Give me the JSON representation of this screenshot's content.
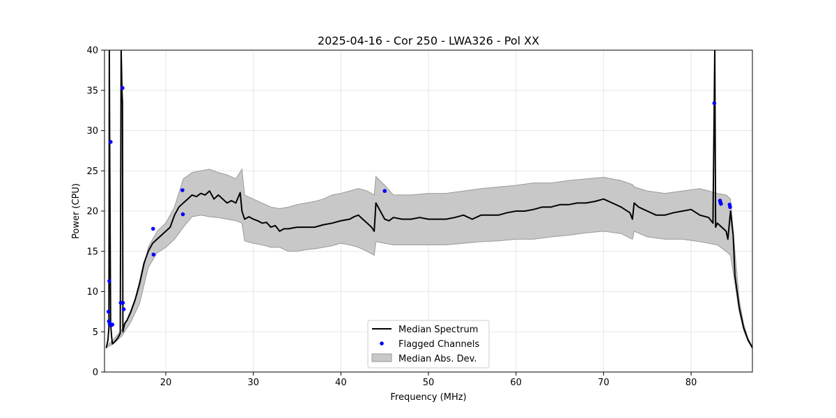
{
  "chart_data": {
    "type": "line",
    "title": "2025-04-16 - Cor 250 - LWA326 - Pol XX",
    "xlabel": "Frequency (MHz)",
    "ylabel": "Power (CPU)",
    "xlim": [
      13,
      87
    ],
    "ylim": [
      0,
      40
    ],
    "xticks": [
      20,
      30,
      40,
      50,
      60,
      70,
      80
    ],
    "yticks": [
      0,
      5,
      10,
      15,
      20,
      25,
      30,
      35,
      40
    ],
    "grid": true,
    "legend_position": "bottom-center",
    "colors": {
      "median": "#000000",
      "flagged": "#0000ff",
      "band_fill": "#c8c8c8",
      "band_edge": "#999999"
    },
    "series": [
      {
        "name": "Median Spectrum",
        "kind": "line",
        "x": [
          13.2,
          13.4,
          13.5,
          13.55,
          13.6,
          13.7,
          13.8,
          13.9,
          14.0,
          14.2,
          14.5,
          14.8,
          14.9,
          15.0,
          15.05,
          15.1,
          15.2,
          15.3,
          15.6,
          16.0,
          16.5,
          17.0,
          17.5,
          18.0,
          18.5,
          19.0,
          19.5,
          20.0,
          20.5,
          21.0,
          21.5,
          22.0,
          22.5,
          23.0,
          23.5,
          24.0,
          24.5,
          25.0,
          25.5,
          26.0,
          26.5,
          27.0,
          27.5,
          28.0,
          28.5,
          28.7,
          29.0,
          29.5,
          30.0,
          30.5,
          31.0,
          31.5,
          32.0,
          32.5,
          33.0,
          33.5,
          34.0,
          35.0,
          36.0,
          37.0,
          38.0,
          39.0,
          40.0,
          41.0,
          41.5,
          42.0,
          42.5,
          43.0,
          43.5,
          43.8,
          44.0,
          44.5,
          45.0,
          45.5,
          46.0,
          47.0,
          48.0,
          49.0,
          50.0,
          51.0,
          52.0,
          53.0,
          54.0,
          55.0,
          56.0,
          57.0,
          58.0,
          59.0,
          60.0,
          61.0,
          62.0,
          63.0,
          64.0,
          65.0,
          66.0,
          67.0,
          68.0,
          69.0,
          70.0,
          71.0,
          72.0,
          73.0,
          73.3,
          73.5,
          74.0,
          75.0,
          76.0,
          77.0,
          78.0,
          79.0,
          80.0,
          81.0,
          82.0,
          82.5,
          82.7,
          82.8,
          83.0,
          83.5,
          84.0,
          84.2,
          84.5,
          84.8,
          85.0,
          85.5,
          86.0,
          86.5,
          87.0
        ],
        "values": [
          3.0,
          4.0,
          5.5,
          40.0,
          27.3,
          6.0,
          4.5,
          3.5,
          3.6,
          3.8,
          4.2,
          4.8,
          40.0,
          35.0,
          33.5,
          5.0,
          5.5,
          6.0,
          6.5,
          7.5,
          9.0,
          11.0,
          13.5,
          15.0,
          16.0,
          16.5,
          17.0,
          17.5,
          18.0,
          19.5,
          20.5,
          21.0,
          21.5,
          22.0,
          21.8,
          22.2,
          22.0,
          22.5,
          21.5,
          22.0,
          21.5,
          21.0,
          21.3,
          21.0,
          22.3,
          20.0,
          19.0,
          19.3,
          19.0,
          18.8,
          18.5,
          18.6,
          18.0,
          18.2,
          17.5,
          17.8,
          17.8,
          18.0,
          18.0,
          18.0,
          18.3,
          18.5,
          18.8,
          19.0,
          19.3,
          19.5,
          19.0,
          18.5,
          18.0,
          17.5,
          21.0,
          20.0,
          19.0,
          18.8,
          19.2,
          19.0,
          19.0,
          19.2,
          19.0,
          19.0,
          19.0,
          19.2,
          19.5,
          19.0,
          19.5,
          19.5,
          19.5,
          19.8,
          20.0,
          20.0,
          20.2,
          20.5,
          20.5,
          20.8,
          20.8,
          21.0,
          21.0,
          21.2,
          21.5,
          21.0,
          20.5,
          19.8,
          19.0,
          21.0,
          20.5,
          20.0,
          19.5,
          19.5,
          19.8,
          20.0,
          20.2,
          19.5,
          19.2,
          18.5,
          40.0,
          18.0,
          18.5,
          18.0,
          17.5,
          16.5,
          20.0,
          17.0,
          12.0,
          8.0,
          5.5,
          4.0,
          3.0
        ]
      },
      {
        "name": "Flagged Channels",
        "kind": "scatter",
        "x": [
          13.45,
          13.5,
          13.55,
          13.6,
          13.7,
          13.75,
          13.9,
          14.85,
          15.0,
          15.05,
          15.1,
          15.2,
          18.55,
          18.6,
          21.9,
          21.95,
          45.0,
          82.65,
          83.3,
          83.35,
          83.4,
          84.4,
          84.45
        ],
        "values": [
          7.5,
          6.3,
          11.3,
          6.0,
          28.6,
          5.8,
          5.9,
          8.6,
          8.6,
          35.3,
          8.6,
          7.8,
          17.8,
          14.6,
          22.6,
          19.6,
          22.5,
          33.4,
          21.3,
          21.1,
          20.9,
          20.8,
          20.5
        ]
      },
      {
        "name": "Median Abs. Dev.",
        "kind": "band",
        "x": [
          13.2,
          14.0,
          15.0,
          16.0,
          17.0,
          18.0,
          19.0,
          20.0,
          21.0,
          22.0,
          23.0,
          24.0,
          25.0,
          26.0,
          27.0,
          28.0,
          28.7,
          29.0,
          30.0,
          31.0,
          32.0,
          33.0,
          34.0,
          35.0,
          36.0,
          37.0,
          38.0,
          39.0,
          40.0,
          41.0,
          42.0,
          43.0,
          43.8,
          44.0,
          45.0,
          46.0,
          47.0,
          48.0,
          50.0,
          52.0,
          54.0,
          56.0,
          58.0,
          60.0,
          62.0,
          64.0,
          66.0,
          68.0,
          70.0,
          72.0,
          73.3,
          73.5,
          75.0,
          77.0,
          79.0,
          81.0,
          82.0,
          83.0,
          84.0,
          84.5,
          85.0,
          85.5,
          86.0,
          86.5,
          87.0
        ],
        "low": [
          3.0,
          3.5,
          4.5,
          6.2,
          8.5,
          13.0,
          14.8,
          15.5,
          16.5,
          18.0,
          19.3,
          19.5,
          19.3,
          19.2,
          19.0,
          18.8,
          18.5,
          16.3,
          16.0,
          15.8,
          15.5,
          15.5,
          15.0,
          15.0,
          15.2,
          15.3,
          15.5,
          15.7,
          16.0,
          15.8,
          15.5,
          15.0,
          14.5,
          16.2,
          16.0,
          15.8,
          15.8,
          15.8,
          15.8,
          15.8,
          16.0,
          16.2,
          16.3,
          16.5,
          16.5,
          16.8,
          17.0,
          17.3,
          17.5,
          17.2,
          16.5,
          17.5,
          16.8,
          16.5,
          16.5,
          16.2,
          16.0,
          15.8,
          15.0,
          14.5,
          11.0,
          7.5,
          5.2,
          3.8,
          3.0
        ],
        "high": [
          3.2,
          4.0,
          5.3,
          7.2,
          10.5,
          15.5,
          17.5,
          18.5,
          20.5,
          24.0,
          24.8,
          25.0,
          25.2,
          24.8,
          24.5,
          24.0,
          25.2,
          22.0,
          21.5,
          21.0,
          20.5,
          20.3,
          20.5,
          20.8,
          21.0,
          21.2,
          21.5,
          22.0,
          22.2,
          22.5,
          22.8,
          22.5,
          22.0,
          24.3,
          23.2,
          22.0,
          22.0,
          22.0,
          22.2,
          22.2,
          22.5,
          22.8,
          23.0,
          23.2,
          23.5,
          23.5,
          23.8,
          24.0,
          24.2,
          23.8,
          23.3,
          23.0,
          22.5,
          22.2,
          22.5,
          22.8,
          22.5,
          22.2,
          22.0,
          21.5,
          15.0,
          9.0,
          6.0,
          4.2,
          3.2
        ]
      }
    ]
  }
}
